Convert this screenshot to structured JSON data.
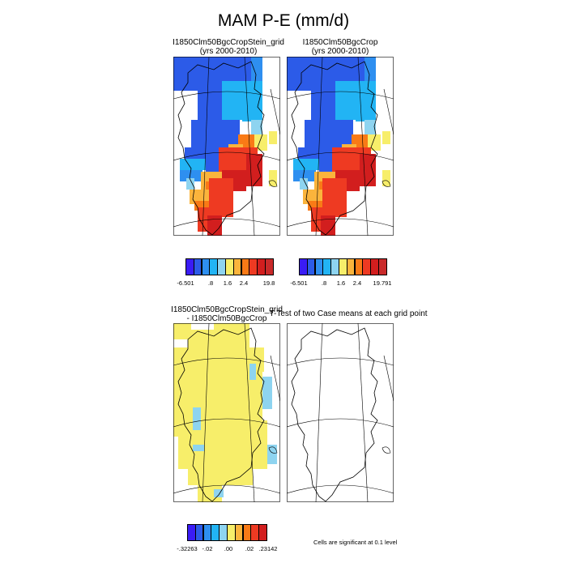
{
  "title": "MAM P-E (mm/d)",
  "panels": {
    "p1": {
      "line1": "I1850Clm50BgcCropStein_grid",
      "line2": "(yrs 2000-2010)"
    },
    "p2": {
      "line1": "I1850Clm50BgcCrop",
      "line2": "(yrs 2000-2010)"
    },
    "p3": {
      "line1": "I1850Clm50BgcCropStein_grid",
      "line2": "- I1850Clm50BgcCrop"
    },
    "p4": {
      "line1": "T-Test of two Case means at each grid point"
    }
  },
  "colorbars": {
    "top_left": {
      "colors": [
        "#3a1cf5",
        "#2c5be8",
        "#2e8ff0",
        "#22b4f4",
        "#8ed4f0",
        "#f7ee6a",
        "#fbb43c",
        "#f97a16",
        "#ee3a22",
        "#d21e1e",
        "#c92a2a"
      ],
      "labels": [
        "-6.501",
        ".8",
        "1.6",
        "2.4",
        "19.8"
      ]
    },
    "top_right": {
      "colors": [
        "#3a1cf5",
        "#2c5be8",
        "#2e8ff0",
        "#22b4f4",
        "#8ed4f0",
        "#f7ee6a",
        "#fbb43c",
        "#f97a16",
        "#ee3a22",
        "#d21e1e",
        "#c92a2a"
      ],
      "labels": [
        "-6.501",
        ".8",
        "1.6",
        "2.4",
        "19.791"
      ]
    },
    "bottom": {
      "colors": [
        "#3a1cf5",
        "#2c5be8",
        "#2e8ff0",
        "#22b4f4",
        "#8ed4f0",
        "#f7ee6a",
        "#fbb43c",
        "#f97a16",
        "#ee3a22",
        "#d21e1e"
      ],
      "labels": [
        "-.32263",
        "-.02",
        ".00",
        ".02",
        ".23142"
      ]
    }
  },
  "note": "Cells are significant at 0.1 level",
  "map_palette": {
    "dark_blue": "#2c5be8",
    "mid_blue": "#2e8ff0",
    "light_blue": "#22b4f4",
    "pale_blue": "#8ed4f0",
    "yellow": "#f7ee6a",
    "orange": "#f97a16",
    "light_orange": "#fbb43c",
    "red": "#ee3a22",
    "dark_red": "#d21e1e"
  }
}
